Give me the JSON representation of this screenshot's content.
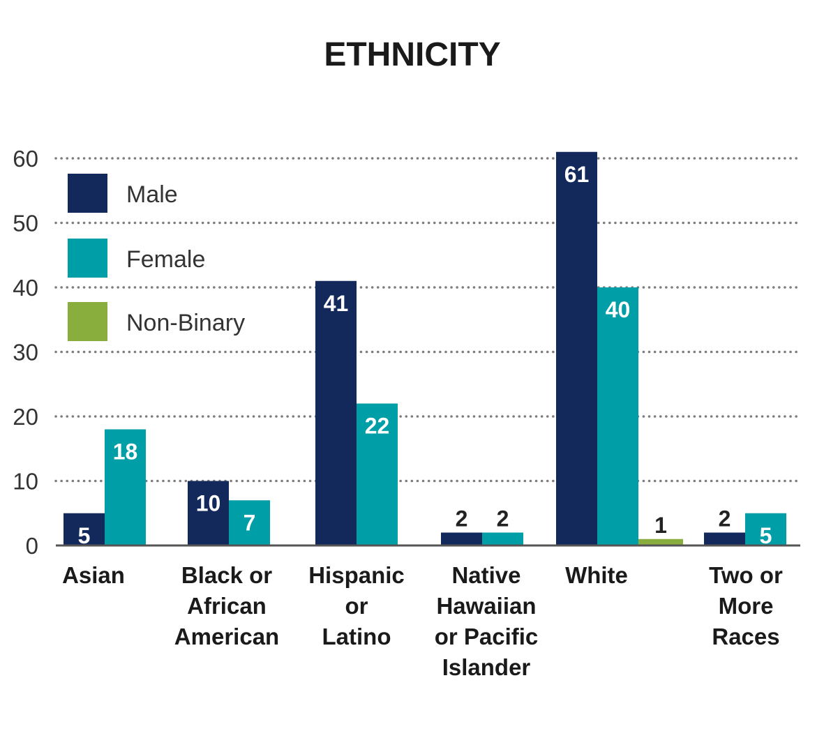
{
  "chart_data": {
    "type": "bar",
    "title": "ETHNICITY",
    "xlabel": "",
    "ylabel": "",
    "ylim": [
      0,
      60
    ],
    "yticks": [
      0,
      10,
      20,
      30,
      40,
      50,
      60
    ],
    "grid": true,
    "legend_position": "top-left",
    "categories": [
      "Asian",
      "Black or African American",
      "Hispanic or Latino",
      "Native Hawaiian or Pacific Islander",
      "White",
      "Two or More Races"
    ],
    "category_lines": [
      [
        "Asian"
      ],
      [
        "Black or",
        "African",
        "American"
      ],
      [
        "Hispanic",
        "or",
        "Latino"
      ],
      [
        "Native",
        "Hawaiian",
        "or Pacific",
        "Islander"
      ],
      [
        "White"
      ],
      [
        "Two or",
        "More",
        "Races"
      ]
    ],
    "series": [
      {
        "name": "Male",
        "color": "#13285b",
        "values": [
          5,
          10,
          41,
          2,
          61,
          2
        ]
      },
      {
        "name": "Female",
        "color": "#009ea6",
        "values": [
          18,
          7,
          22,
          2,
          40,
          5
        ]
      },
      {
        "name": "Non-Binary",
        "color": "#8aae3e",
        "values": [
          null,
          null,
          null,
          null,
          1,
          null
        ]
      }
    ]
  }
}
